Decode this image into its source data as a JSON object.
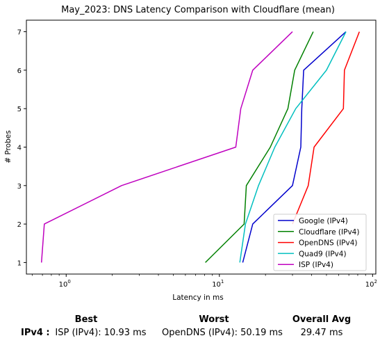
{
  "chart_data": {
    "type": "line",
    "title": "May_2023: DNS Latency Comparison with Cloudflare (mean)",
    "xlabel": "Latency in ms",
    "ylabel": "# Probes",
    "xscale": "log",
    "xlim": [
      0.55,
      105
    ],
    "ylim": [
      0.7,
      7.3
    ],
    "x_ticks": [
      {
        "v": 1,
        "label": "10",
        "sup": "0"
      },
      {
        "v": 10,
        "label": "10",
        "sup": "1"
      },
      {
        "v": 100,
        "label": "10",
        "sup": "2"
      }
    ],
    "y_ticks": [
      "1",
      "2",
      "3",
      "4",
      "5",
      "6",
      "7"
    ],
    "legend_position": "lower-right",
    "series": [
      {
        "name": "Google (IPv4)",
        "color": "#0000cc",
        "points": [
          [
            14.2,
            1
          ],
          [
            16.5,
            2
          ],
          [
            30.0,
            3
          ],
          [
            34.0,
            4
          ],
          [
            34.5,
            5
          ],
          [
            35.5,
            6
          ],
          [
            67.0,
            7
          ]
        ]
      },
      {
        "name": "Cloudflare (IPv4)",
        "color": "#008000",
        "points": [
          [
            8.1,
            1
          ],
          [
            14.5,
            2
          ],
          [
            15.0,
            3
          ],
          [
            21.5,
            4
          ],
          [
            28.0,
            5
          ],
          [
            31.0,
            6
          ],
          [
            41.0,
            7
          ]
        ]
      },
      {
        "name": "OpenDNS (IPv4)",
        "color": "#ff0000",
        "points": [
          [
            30.0,
            2
          ],
          [
            38.0,
            3
          ],
          [
            41.5,
            4
          ],
          [
            64.5,
            5
          ],
          [
            65.5,
            6
          ],
          [
            82.0,
            7
          ]
        ]
      },
      {
        "name": "Quad9 (IPv4)",
        "color": "#00bfbf",
        "points": [
          [
            13.6,
            1
          ],
          [
            14.8,
            2
          ],
          [
            18.0,
            3
          ],
          [
            23.0,
            4
          ],
          [
            31.5,
            5
          ],
          [
            50.0,
            6
          ],
          [
            67.0,
            7
          ]
        ]
      },
      {
        "name": "ISP (IPv4)",
        "color": "#bf00bf",
        "points": [
          [
            0.69,
            1
          ],
          [
            0.72,
            2
          ],
          [
            2.3,
            3
          ],
          [
            12.8,
            4
          ],
          [
            13.8,
            5
          ],
          [
            16.5,
            6
          ],
          [
            30.0,
            7
          ]
        ]
      }
    ]
  },
  "summary": {
    "headers": {
      "best": "Best",
      "worst": "Worst",
      "overall": "Overall Avg"
    },
    "row_label": "IPv4 :",
    "best": "ISP (IPv4): 10.93 ms",
    "worst": "OpenDNS (IPv4): 50.19 ms",
    "overall": "29.47 ms"
  }
}
